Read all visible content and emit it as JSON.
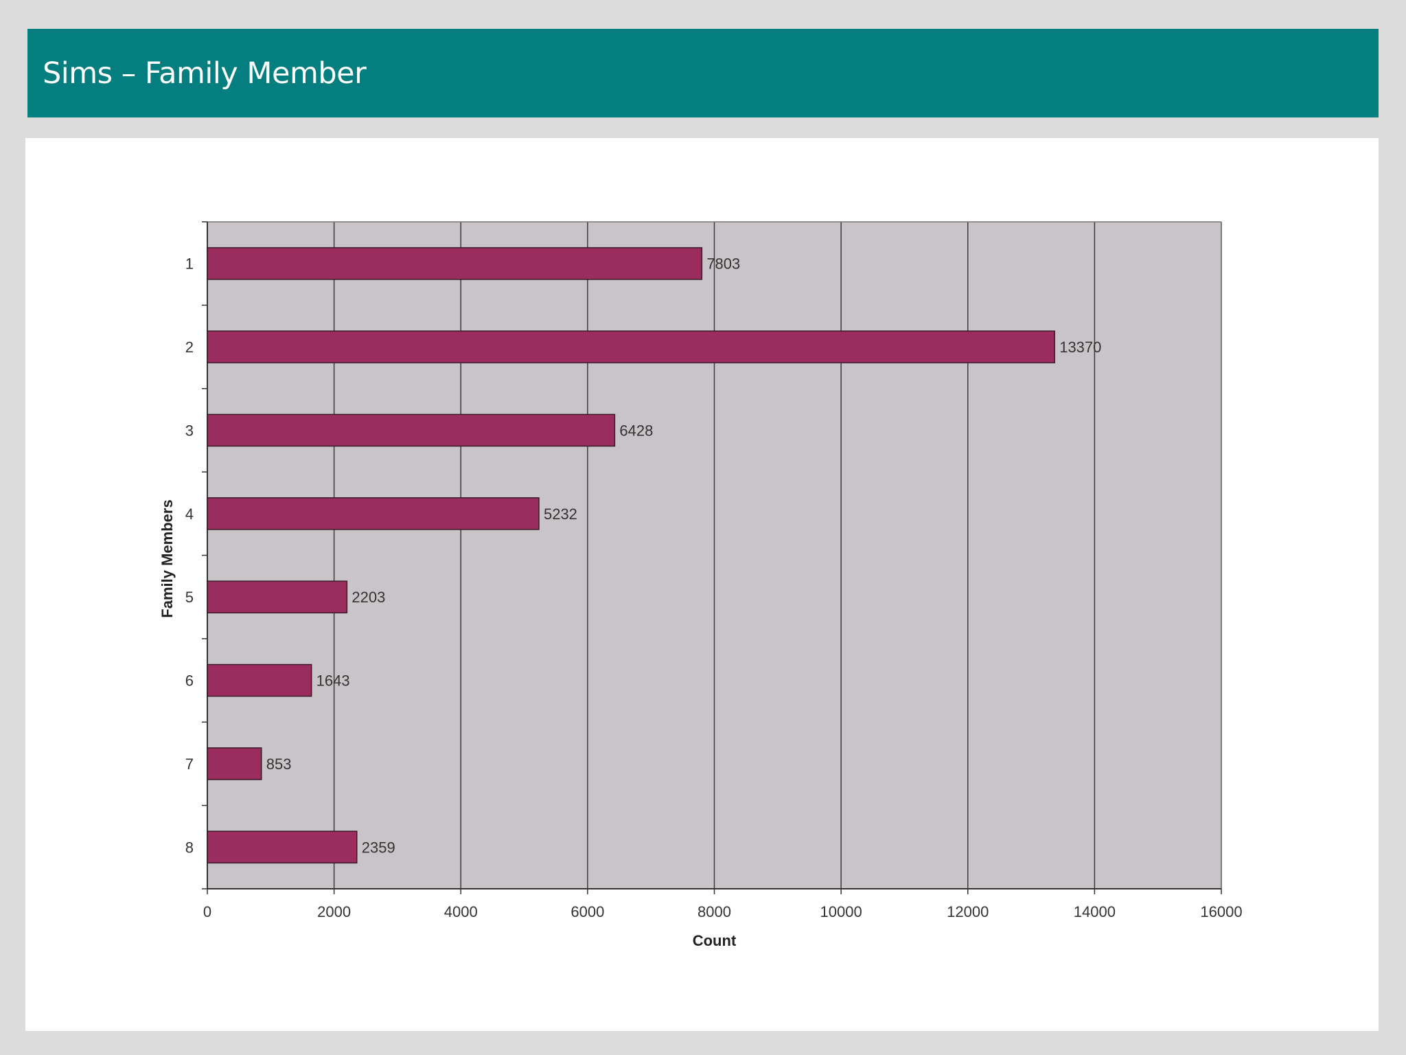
{
  "slide": {
    "title": "Sims – Family Member"
  },
  "colors": {
    "banner": "#047e7e",
    "bar": "#9b2d5e",
    "plot_bg": "#c8c4c8"
  },
  "chart_data": {
    "type": "bar",
    "orientation": "horizontal",
    "title": "",
    "xlabel": "Count",
    "ylabel": "Family Members",
    "categories": [
      "1",
      "2",
      "3",
      "4",
      "5",
      "6",
      "7",
      "8"
    ],
    "values": [
      7803,
      13370,
      6428,
      5232,
      2203,
      1643,
      853,
      2359
    ],
    "data_labels": [
      "7803",
      "13370",
      "6428",
      "5232",
      "2203",
      "1643",
      "853",
      "2359"
    ],
    "xlim": [
      0,
      16000
    ],
    "xticks": [
      0,
      2000,
      4000,
      6000,
      8000,
      10000,
      12000,
      14000,
      16000
    ],
    "xtick_labels": [
      "0",
      "2000",
      "4000",
      "6000",
      "8000",
      "10000",
      "12000",
      "14000",
      "16000"
    ],
    "grid": true,
    "legend": "none"
  }
}
